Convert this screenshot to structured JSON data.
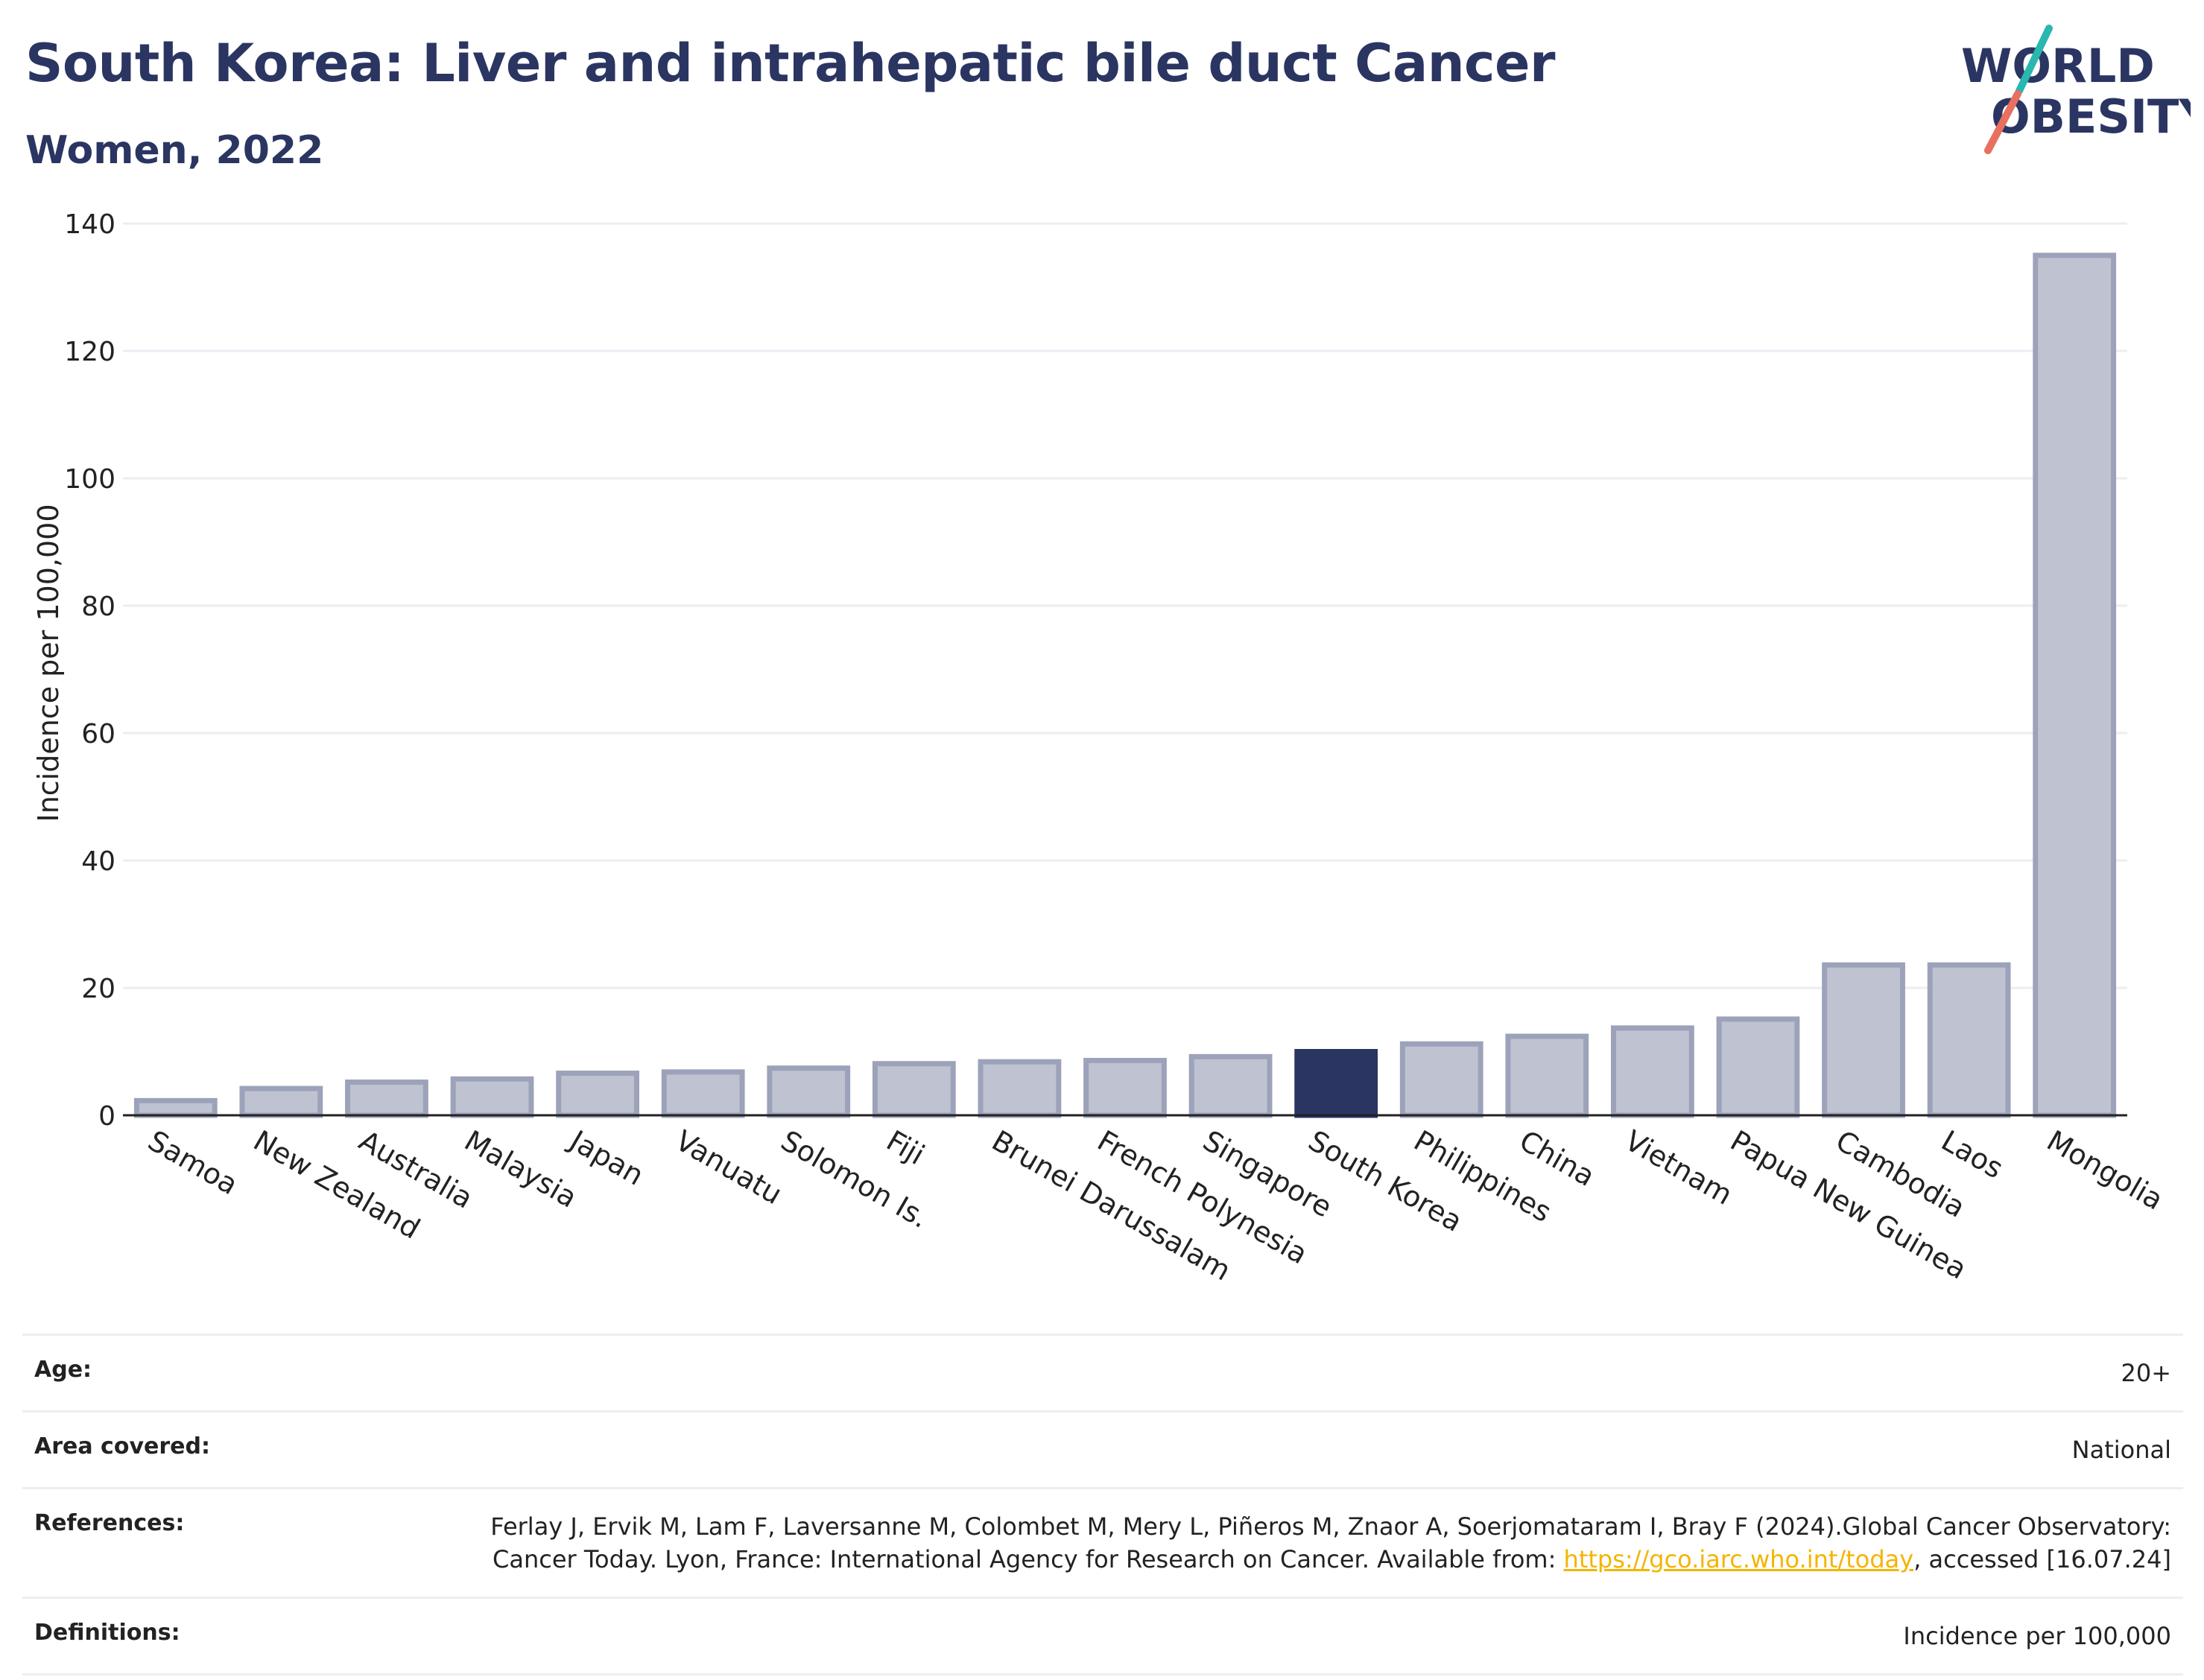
{
  "header": {
    "title": "South Korea: Liver and intrahepatic bile duct Cancer",
    "subtitle": "Women, 2022"
  },
  "logo": {
    "line1": "WORLD",
    "line2": "OBESITY",
    "teal": "#2ab7b0",
    "coral": "#e8705f",
    "navy": "#2b3562"
  },
  "chart_data": {
    "type": "bar",
    "ylabel": "Incidence per 100,000",
    "xlabel": "",
    "ylim": [
      0,
      140
    ],
    "yticks": [
      0,
      20,
      40,
      60,
      80,
      100,
      120,
      140
    ],
    "grid": true,
    "categories": [
      "Samoa",
      "New Zealand",
      "Australia",
      "Malaysia",
      "Japan",
      "Vanuatu",
      "Solomon Is.",
      "Fiji",
      "Brunei Darussalam",
      "French Polynesia",
      "Singapore",
      "South Korea",
      "Philippines",
      "China",
      "Vietnam",
      "Papua New Guinea",
      "Cambodia",
      "Laos",
      "Mongolia"
    ],
    "values": [
      2.3,
      4.2,
      5.2,
      5.7,
      6.6,
      6.8,
      7.4,
      8.1,
      8.4,
      8.6,
      9.2,
      10.0,
      11.2,
      12.4,
      13.7,
      15.1,
      23.6,
      23.6,
      135.0
    ],
    "highlight": "South Korea",
    "colors": {
      "bar": "#bfc3d1",
      "bar_stroke": "#9ca2b9",
      "highlight": "#2b3562",
      "grid": "#eceef3",
      "axis": "#222222"
    }
  },
  "meta": {
    "age_label": "Age:",
    "age_value": "20+",
    "area_label": "Area covered:",
    "area_value": "National",
    "references_label": "References:",
    "references_text_1": "Ferlay J, Ervik M, Lam F, Laversanne M, Colombet M, Mery L, Piñeros M, Znaor A, Soerjomataram I, Bray F (2024).Global Cancer Observatory: Cancer Today. Lyon, France: International Agency for Research on Cancer. Available from: ",
    "references_link": "https://gco.iarc.who.int/today",
    "references_text_2": ", accessed [16.07.24]",
    "definitions_label": "Definitions:",
    "definitions_value": "Incidence per 100,000"
  }
}
